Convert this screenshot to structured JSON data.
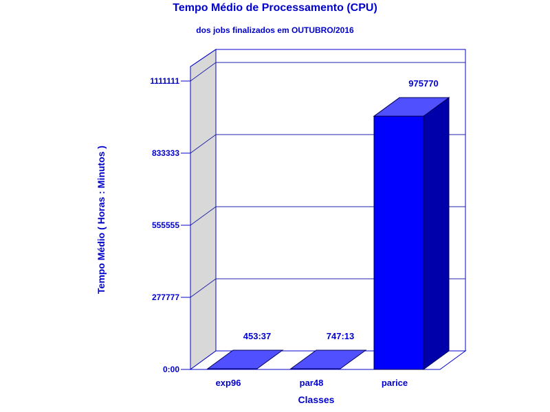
{
  "chart_data": {
    "type": "bar",
    "title": "Tempo Médio de Processamento (CPU)",
    "subtitle": "dos jobs finalizados em OUTUBRO/2016",
    "xlabel": "Classes",
    "ylabel": "Tempo Médio ( Horas : Minutos )",
    "categories": [
      "exp96",
      "par48",
      "parice"
    ],
    "values": [
      453.62,
      747.22,
      975770
    ],
    "data_labels": [
      "453:37",
      "747:13",
      "975770"
    ],
    "yticks": [
      0,
      277777,
      555555,
      833333,
      1111111
    ],
    "ytick_labels": [
      "0:00",
      "277777",
      "555555",
      "833333",
      "1111111"
    ],
    "ylim": [
      0,
      1166666
    ],
    "grid": true,
    "legend": "none",
    "colors": {
      "text": "#0000cc",
      "axis": "#0000cc",
      "bar_front": "#0000ff",
      "bar_top": "#5050ff",
      "bar_side": "#0000aa",
      "wall_side": "#d8d8d8",
      "gridline": "#2222aa"
    }
  }
}
